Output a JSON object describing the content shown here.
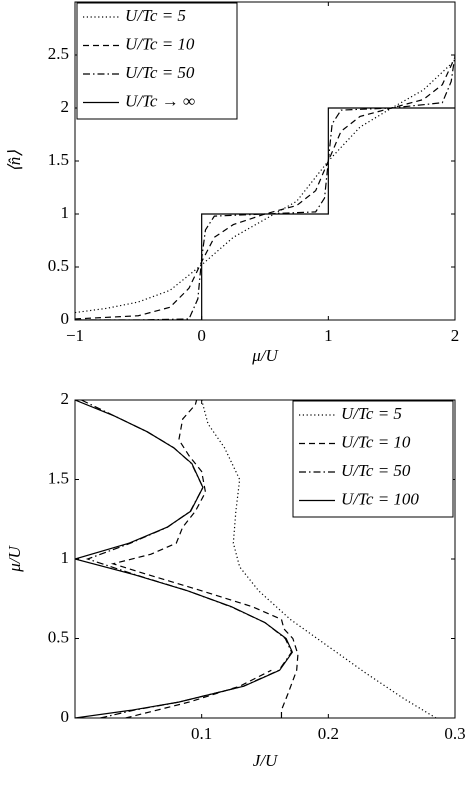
{
  "chart_data": [
    {
      "type": "line",
      "xlabel": "μ/U",
      "ylabel": "⟨n̂⟩",
      "xlim": [
        -1,
        2
      ],
      "ylim": [
        0,
        3
      ],
      "xticks": [
        {
          "value": -1,
          "label": "−1"
        },
        0,
        1,
        2
      ],
      "yticks": [
        0,
        0.5,
        1,
        1.5,
        2,
        2.5
      ],
      "legend": "upper left",
      "series": [
        {
          "name": "U/Tc = 5",
          "color": "#000000",
          "dash": "dotted",
          "x": [
            -1,
            -0.75,
            -0.5,
            -0.25,
            0,
            0.25,
            0.5,
            0.75,
            1,
            1.25,
            1.5,
            1.75,
            2
          ],
          "values": [
            0.07,
            0.11,
            0.17,
            0.28,
            0.52,
            0.78,
            0.95,
            1.12,
            1.5,
            1.82,
            2.0,
            2.17,
            2.45
          ]
        },
        {
          "name": "U/Tc = 10",
          "color": "#000000",
          "dash": "dashed",
          "x": [
            -1,
            -0.5,
            -0.25,
            -0.1,
            0,
            0.1,
            0.25,
            0.5,
            0.75,
            0.9,
            1,
            1.1,
            1.25,
            1.5,
            1.75,
            1.9,
            2
          ],
          "values": [
            0.01,
            0.04,
            0.12,
            0.3,
            0.55,
            0.78,
            0.9,
            1.0,
            1.08,
            1.22,
            1.5,
            1.78,
            1.92,
            2.0,
            2.08,
            2.22,
            2.48
          ]
        },
        {
          "name": "U/Tc = 50",
          "color": "#000000",
          "dash": "dashdot",
          "x": [
            -1,
            -0.5,
            -0.1,
            -0.03,
            0,
            0.03,
            0.1,
            0.5,
            0.9,
            0.97,
            1,
            1.03,
            1.1,
            1.5,
            1.9,
            1.97,
            2
          ],
          "values": [
            0,
            0,
            0.01,
            0.2,
            0.58,
            0.85,
            0.98,
            1.0,
            1.02,
            1.15,
            1.5,
            1.85,
            1.98,
            2.0,
            2.05,
            2.25,
            2.5
          ]
        },
        {
          "name": "U/Tc → ∞",
          "color": "#000000",
          "dash": "solid",
          "x": [
            -1,
            0,
            0,
            1,
            1,
            2
          ],
          "values": [
            0,
            0,
            1,
            1,
            2,
            2
          ]
        }
      ]
    },
    {
      "type": "line",
      "xlabel": "J/U",
      "ylabel": "μ/U",
      "xlim": [
        0,
        0.3
      ],
      "ylim": [
        0,
        2
      ],
      "xticks": [
        0.1,
        0.2,
        0.3
      ],
      "yticks": [
        0,
        0.5,
        1,
        1.5,
        2
      ],
      "legend": "upper right",
      "series": [
        {
          "name": "U/Tc = 5",
          "color": "#000000",
          "dash": "dotted",
          "x": [
            0.285,
            0.26,
            0.23,
            0.2,
            0.17,
            0.145,
            0.13,
            0.125,
            0.127,
            0.13,
            0.118,
            0.105,
            0.1
          ],
          "values": [
            0,
            0.12,
            0.28,
            0.45,
            0.62,
            0.8,
            0.95,
            1.1,
            1.3,
            1.5,
            1.7,
            1.85,
            2
          ]
        },
        {
          "name": "U/Tc = 10",
          "color": "#000000",
          "dash": "dashed",
          "x": [
            0.04,
            0.06,
            0.09,
            0.13,
            0.155,
            null,
            0.163,
            0.163,
            0.168,
            0.175,
            0.176,
            0.172,
            0.165,
            0.163,
            0.14,
            0.1,
            0.05,
            0.03,
            0.06,
            0.08,
            0.085,
            0.095,
            0.103,
            0.1,
            0.09,
            0.082,
            0.085,
            0.095,
            0.096
          ],
          "values": [
            0,
            0.04,
            0.1,
            0.2,
            0.3,
            null,
            0,
            0.05,
            0.15,
            0.3,
            0.4,
            0.5,
            0.56,
            0.62,
            0.7,
            0.8,
            0.92,
            0.97,
            1.03,
            1.1,
            1.2,
            1.3,
            1.42,
            1.55,
            1.65,
            1.75,
            1.88,
            1.97,
            2
          ]
        },
        {
          "name": "U/Tc = 50",
          "color": "#000000",
          "dash": "dashdot",
          "x": [
            0.02,
            0.047,
            0.082,
            0.133,
            0.161,
            0.171,
            0.166,
            0.15,
            0.123,
            0.089,
            0.048,
            0.01,
            0.044,
            0.073,
            0.091,
            0.101,
            0.092,
            0.078,
            0.057,
            0.031,
            0.005
          ],
          "values": [
            0,
            0.05,
            0.1,
            0.2,
            0.3,
            0.414,
            0.5,
            0.6,
            0.7,
            0.8,
            0.9,
            1,
            1.1,
            1.2,
            1.3,
            1.45,
            1.6,
            1.7,
            1.8,
            1.9,
            2
          ]
        },
        {
          "name": "U/Tc = 100",
          "color": "#000000",
          "dash": "solid",
          "x": [
            0,
            0.0452,
            0.0818,
            0.1333,
            0.1615,
            0.1716,
            0.1667,
            0.15,
            0.1235,
            0.0889,
            0.0474,
            0,
            0.0429,
            0.0727,
            0.0913,
            0.101,
            0.0923,
            0.0778,
            0.0571,
            0.031,
            0
          ],
          "values": [
            0,
            0.05,
            0.1,
            0.2,
            0.3,
            0.414,
            0.5,
            0.6,
            0.7,
            0.8,
            0.9,
            1,
            1.1,
            1.2,
            1.3,
            1.45,
            1.6,
            1.7,
            1.8,
            1.9,
            2
          ]
        }
      ]
    }
  ]
}
